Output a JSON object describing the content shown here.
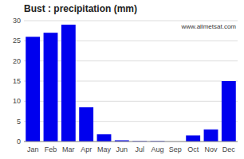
{
  "chart_data": {
    "type": "bar",
    "title": "Bust : precipitation (mm)",
    "categories": [
      "Jan",
      "Feb",
      "Mar",
      "Apr",
      "May",
      "Jun",
      "Jul",
      "Aug",
      "Sep",
      "Oct",
      "Nov",
      "Dec"
    ],
    "values": [
      26,
      27,
      29,
      8.5,
      1.8,
      0.3,
      0.1,
      0.1,
      0,
      1.5,
      3,
      15
    ],
    "color": "#0000ee",
    "ylim": [
      0,
      30
    ],
    "yticks": [
      0,
      5,
      10,
      15,
      20,
      25,
      30
    ],
    "grid": true,
    "annotations": [
      "www.allmetsat.com"
    ]
  }
}
